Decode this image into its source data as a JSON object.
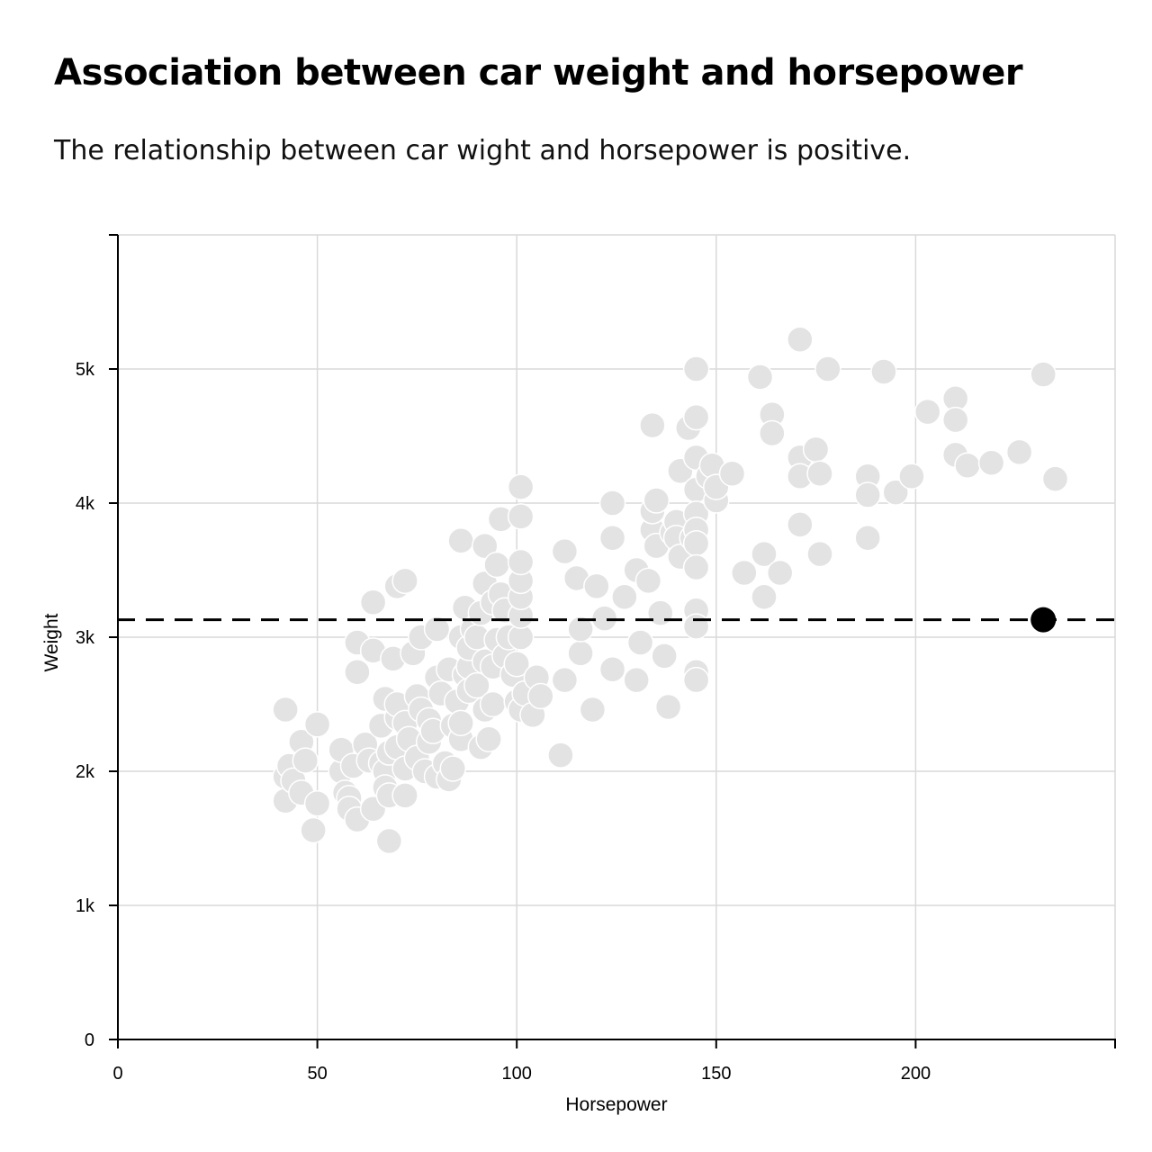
{
  "chart_data": {
    "type": "scatter",
    "title": "Association between car weight and horsepower",
    "subtitle": "The relationship between car wight and horsepower is positive.",
    "xlabel": "Horsepower",
    "ylabel": "Weight",
    "xlim": [
      0,
      250
    ],
    "ylim": [
      0,
      6000
    ],
    "x_ticks": [
      {
        "value": 0,
        "label": "0"
      },
      {
        "value": 50,
        "label": "50"
      },
      {
        "value": 100,
        "label": "100"
      },
      {
        "value": 150,
        "label": "150"
      },
      {
        "value": 200,
        "label": "200"
      }
    ],
    "y_ticks": [
      {
        "value": 0,
        "label": "0"
      },
      {
        "value": 1000,
        "label": "1k"
      },
      {
        "value": 2000,
        "label": "2k"
      },
      {
        "value": 3000,
        "label": "3k"
      },
      {
        "value": 4000,
        "label": "4k"
      },
      {
        "value": 5000,
        "label": "5k"
      }
    ],
    "grid": true,
    "point_color": "#e3e3e3",
    "point_stroke": "#ffffff",
    "highlight_color": "#000000",
    "reference_line": {
      "y": 3130,
      "style": "dashed",
      "color": "#000000"
    },
    "highlight": {
      "x": 232,
      "y": 3130
    },
    "points": [
      [
        42,
        2460
      ],
      [
        42,
        1960
      ],
      [
        43,
        2040
      ],
      [
        42,
        1780
      ],
      [
        44,
        1930
      ],
      [
        46,
        2220
      ],
      [
        47,
        2080
      ],
      [
        46,
        1840
      ],
      [
        50,
        2350
      ],
      [
        50,
        1760
      ],
      [
        49,
        1560
      ],
      [
        56,
        2000
      ],
      [
        56,
        2160
      ],
      [
        57,
        1840
      ],
      [
        58,
        1800
      ],
      [
        58,
        1720
      ],
      [
        59,
        2040
      ],
      [
        60,
        1640
      ],
      [
        60,
        2740
      ],
      [
        60,
        2960
      ],
      [
        62,
        2200
      ],
      [
        63,
        2080
      ],
      [
        64,
        1720
      ],
      [
        64,
        2900
      ],
      [
        64,
        3260
      ],
      [
        66,
        2340
      ],
      [
        66,
        2060
      ],
      [
        67,
        2000
      ],
      [
        67,
        2540
      ],
      [
        67,
        1880
      ],
      [
        68,
        2140
      ],
      [
        68,
        1820
      ],
      [
        68,
        1480
      ],
      [
        69,
        2840
      ],
      [
        70,
        2180
      ],
      [
        70,
        3380
      ],
      [
        70,
        2400
      ],
      [
        70,
        2500
      ],
      [
        72,
        2360
      ],
      [
        72,
        3420
      ],
      [
        72,
        2020
      ],
      [
        72,
        1820
      ],
      [
        73,
        2240
      ],
      [
        74,
        2880
      ],
      [
        75,
        2100
      ],
      [
        75,
        2560
      ],
      [
        76,
        2460
      ],
      [
        76,
        3000
      ],
      [
        77,
        2000
      ],
      [
        78,
        2220
      ],
      [
        78,
        2380
      ],
      [
        79,
        2300
      ],
      [
        80,
        1960
      ],
      [
        80,
        2700
      ],
      [
        80,
        3060
      ],
      [
        81,
        2580
      ],
      [
        82,
        2060
      ],
      [
        83,
        1940
      ],
      [
        83,
        2760
      ],
      [
        84,
        2020
      ],
      [
        84,
        2340
      ],
      [
        85,
        2520
      ],
      [
        86,
        2240
      ],
      [
        86,
        2360
      ],
      [
        86,
        3000
      ],
      [
        86,
        3720
      ],
      [
        87,
        2720
      ],
      [
        87,
        3220
      ],
      [
        88,
        2780
      ],
      [
        88,
        2600
      ],
      [
        88,
        2920
      ],
      [
        89,
        3060
      ],
      [
        90,
        2640
      ],
      [
        90,
        3000
      ],
      [
        91,
        3180
      ],
      [
        91,
        2180
      ],
      [
        92,
        2460
      ],
      [
        92,
        2820
      ],
      [
        92,
        3680
      ],
      [
        92,
        3400
      ],
      [
        93,
        2240
      ],
      [
        94,
        2500
      ],
      [
        94,
        2780
      ],
      [
        94,
        3260
      ],
      [
        95,
        3540
      ],
      [
        95,
        2980
      ],
      [
        96,
        3880
      ],
      [
        96,
        3320
      ],
      [
        97,
        3200
      ],
      [
        97,
        2860
      ],
      [
        98,
        3000
      ],
      [
        99,
        2720
      ],
      [
        100,
        2520
      ],
      [
        100,
        2800
      ],
      [
        101,
        2460
      ],
      [
        101,
        3000
      ],
      [
        101,
        3160
      ],
      [
        101,
        3300
      ],
      [
        101,
        3420
      ],
      [
        101,
        3560
      ],
      [
        101,
        3900
      ],
      [
        101,
        4120
      ],
      [
        102,
        2580
      ],
      [
        104,
        2420
      ],
      [
        105,
        2700
      ],
      [
        106,
        2560
      ],
      [
        111,
        2120
      ],
      [
        112,
        2680
      ],
      [
        112,
        3640
      ],
      [
        115,
        3440
      ],
      [
        116,
        2880
      ],
      [
        116,
        3060
      ],
      [
        119,
        2460
      ],
      [
        120,
        3380
      ],
      [
        122,
        3140
      ],
      [
        124,
        2760
      ],
      [
        124,
        3740
      ],
      [
        124,
        4000
      ],
      [
        127,
        3300
      ],
      [
        130,
        2680
      ],
      [
        130,
        3500
      ],
      [
        131,
        2960
      ],
      [
        133,
        3420
      ],
      [
        134,
        4580
      ],
      [
        134,
        3800
      ],
      [
        134,
        3940
      ],
      [
        135,
        3680
      ],
      [
        135,
        4020
      ],
      [
        136,
        3180
      ],
      [
        137,
        2860
      ],
      [
        138,
        2480
      ],
      [
        139,
        3780
      ],
      [
        140,
        3860
      ],
      [
        140,
        3740
      ],
      [
        141,
        3600
      ],
      [
        141,
        4240
      ],
      [
        143,
        4560
      ],
      [
        144,
        3740
      ],
      [
        145,
        5000
      ],
      [
        145,
        4640
      ],
      [
        145,
        4340
      ],
      [
        145,
        4100
      ],
      [
        145,
        3920
      ],
      [
        145,
        3800
      ],
      [
        145,
        3700
      ],
      [
        145,
        3520
      ],
      [
        145,
        3200
      ],
      [
        145,
        3080
      ],
      [
        145,
        2740
      ],
      [
        145,
        2680
      ],
      [
        148,
        4200
      ],
      [
        149,
        4280
      ],
      [
        150,
        4020
      ],
      [
        150,
        4120
      ],
      [
        154,
        4220
      ],
      [
        157,
        3480
      ],
      [
        161,
        4940
      ],
      [
        162,
        3620
      ],
      [
        162,
        3300
      ],
      [
        164,
        4660
      ],
      [
        164,
        4520
      ],
      [
        166,
        3480
      ],
      [
        171,
        5220
      ],
      [
        171,
        4340
      ],
      [
        171,
        4200
      ],
      [
        171,
        3840
      ],
      [
        175,
        4400
      ],
      [
        176,
        4220
      ],
      [
        176,
        3620
      ],
      [
        178,
        5000
      ],
      [
        188,
        4200
      ],
      [
        188,
        4060
      ],
      [
        188,
        3740
      ],
      [
        192,
        4980
      ],
      [
        195,
        4080
      ],
      [
        199,
        4200
      ],
      [
        203,
        4680
      ],
      [
        210,
        4780
      ],
      [
        210,
        4620
      ],
      [
        210,
        4360
      ],
      [
        213,
        4280
      ],
      [
        219,
        4300
      ],
      [
        226,
        4380
      ],
      [
        232,
        4960
      ],
      [
        235,
        4180
      ]
    ]
  }
}
